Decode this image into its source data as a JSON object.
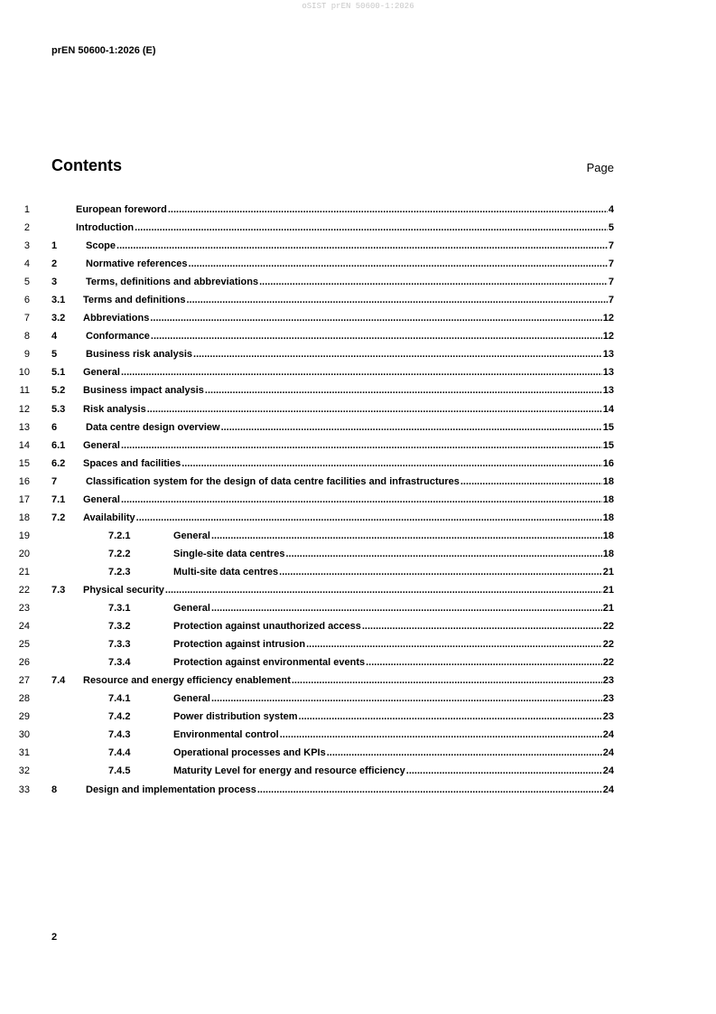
{
  "watermark": "oSIST prEN 50600-1:2026",
  "header": "prEN 50600-1:2026 (E)",
  "title": "Contents",
  "page_label": "Page",
  "entries": [
    {
      "line": "1",
      "num": "",
      "title": "European foreword",
      "page": "4",
      "level": 0
    },
    {
      "line": "2",
      "num": "",
      "title": "Introduction",
      "page": "5",
      "level": 0
    },
    {
      "line": "3",
      "num": "1",
      "title": "Scope",
      "page": "7",
      "level": 1
    },
    {
      "line": "4",
      "num": "2",
      "title": "Normative references",
      "page": "7",
      "level": 1
    },
    {
      "line": "5",
      "num": "3",
      "title": "Terms, definitions and abbreviations",
      "page": "7",
      "level": 1
    },
    {
      "line": "6",
      "num": "3.1",
      "title": "Terms and definitions",
      "page": "7",
      "level": 2
    },
    {
      "line": "7",
      "num": "3.2",
      "title": "Abbreviations",
      "page": "12",
      "level": 2
    },
    {
      "line": "8",
      "num": "4",
      "title": "Conformance",
      "page": "12",
      "level": 1
    },
    {
      "line": "9",
      "num": "5",
      "title": "Business risk analysis",
      "page": "13",
      "level": 1
    },
    {
      "line": "10",
      "num": "5.1",
      "title": "General",
      "page": "13",
      "level": 2
    },
    {
      "line": "11",
      "num": "5.2",
      "title": "Business impact analysis",
      "page": "13",
      "level": 2
    },
    {
      "line": "12",
      "num": "5.3",
      "title": "Risk analysis",
      "page": "14",
      "level": 2
    },
    {
      "line": "13",
      "num": "6",
      "title": "Data centre design overview",
      "page": "15",
      "level": 1
    },
    {
      "line": "14",
      "num": "6.1",
      "title": "General",
      "page": "15",
      "level": 2
    },
    {
      "line": "15",
      "num": "6.2",
      "title": "Spaces and facilities",
      "page": "16",
      "level": 2
    },
    {
      "line": "16",
      "num": "7",
      "title": "Classification system for the design of data centre facilities and infrastructures",
      "page": "18",
      "level": 1
    },
    {
      "line": "17",
      "num": "7.1",
      "title": "General",
      "page": "18",
      "level": 2
    },
    {
      "line": "18",
      "num": "7.2",
      "title": "Availability",
      "page": "18",
      "level": 2
    },
    {
      "line": "19",
      "num": "7.2.1",
      "title": "General",
      "page": "18",
      "level": 3
    },
    {
      "line": "20",
      "num": "7.2.2",
      "title": "Single-site data centres",
      "page": "18",
      "level": 3
    },
    {
      "line": "21",
      "num": "7.2.3",
      "title": "Multi-site data centres",
      "page": "21",
      "level": 3
    },
    {
      "line": "22",
      "num": "7.3",
      "title": "Physical security",
      "page": "21",
      "level": 2
    },
    {
      "line": "23",
      "num": "7.3.1",
      "title": "General",
      "page": "21",
      "level": 3
    },
    {
      "line": "24",
      "num": "7.3.2",
      "title": "Protection against unauthorized access",
      "page": "22",
      "level": 3
    },
    {
      "line": "25",
      "num": "7.3.3",
      "title": "Protection against intrusion",
      "page": "22",
      "level": 3
    },
    {
      "line": "26",
      "num": "7.3.4",
      "title": "Protection against environmental events",
      "page": "22",
      "level": 3
    },
    {
      "line": "27",
      "num": "7.4",
      "title": "Resource and energy efficiency enablement",
      "page": "23",
      "level": 2
    },
    {
      "line": "28",
      "num": "7.4.1",
      "title": "General",
      "page": "23",
      "level": 3
    },
    {
      "line": "29",
      "num": "7.4.2",
      "title": "Power distribution system",
      "page": "23",
      "level": 3
    },
    {
      "line": "30",
      "num": "7.4.3",
      "title": "Environmental control",
      "page": "24",
      "level": 3
    },
    {
      "line": "31",
      "num": "7.4.4",
      "title": "Operational processes and KPIs",
      "page": "24",
      "level": 3
    },
    {
      "line": "32",
      "num": "7.4.5",
      "title": "Maturity Level for energy and resource efficiency",
      "page": "24",
      "level": 3
    },
    {
      "line": "33",
      "num": "8",
      "title": "Design and implementation process",
      "page": "24",
      "level": 1
    }
  ],
  "footer_page": "2"
}
